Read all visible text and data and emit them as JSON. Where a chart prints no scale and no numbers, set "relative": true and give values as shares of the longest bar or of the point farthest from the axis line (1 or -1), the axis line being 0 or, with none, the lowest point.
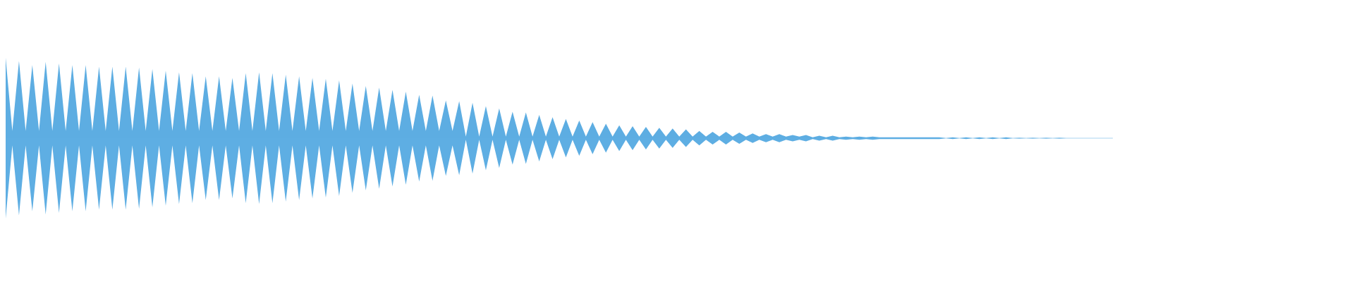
{
  "chart_data": {
    "type": "area",
    "relative": true,
    "ref_lines": [
      {
        "axis": "y",
        "value": 0,
        "color": "#a9d3ef"
      }
    ],
    "categories": [
      null,
      null,
      null,
      null,
      null,
      null,
      null,
      null,
      null,
      null,
      null,
      null,
      null,
      null,
      null,
      null,
      null,
      null,
      null,
      null,
      null,
      null,
      null,
      null,
      null,
      null,
      null,
      null,
      null,
      null,
      null,
      null,
      null,
      null,
      null,
      null,
      null,
      null,
      null,
      null,
      null,
      null,
      null,
      null,
      null,
      null,
      null,
      null,
      null,
      null,
      null,
      null,
      null,
      null,
      null,
      null,
      null,
      null,
      null,
      null,
      null,
      null,
      null,
      null,
      null,
      null,
      null,
      null,
      null,
      null,
      null,
      null,
      null,
      null,
      null,
      null,
      null,
      null,
      null,
      null,
      null,
      null,
      null,
      null,
      null,
      null,
      null,
      null,
      null,
      null,
      null,
      null,
      null,
      null,
      null,
      null,
      null,
      null,
      null,
      null,
      null,
      null,
      null,
      null,
      null,
      null,
      null,
      null,
      null,
      null,
      null,
      null,
      null,
      null,
      null,
      null,
      null,
      null,
      null,
      null,
      null,
      null,
      null,
      null,
      null,
      null,
      null,
      null,
      null,
      null,
      null,
      null,
      null,
      null,
      null,
      null,
      null,
      null,
      null,
      null,
      null,
      null,
      null,
      null,
      null,
      null,
      null,
      null,
      null,
      null,
      null,
      null,
      null,
      null,
      null,
      null,
      null,
      null,
      null,
      null,
      null,
      null,
      null,
      null,
      null,
      null,
      null
    ],
    "series": [
      {
        "color": "#5dade2",
        "values": [
          1,
          0.09,
          0.96,
          0.09,
          0.91,
          0.09,
          0.95,
          0.09,
          0.93,
          0.09,
          0.91,
          0.09,
          0.91,
          0.09,
          0.89,
          0.09,
          0.89,
          0.09,
          0.89,
          0.09,
          0.88,
          0.09,
          0.86,
          0.09,
          0.84,
          0.09,
          0.82,
          0.09,
          0.81,
          0.09,
          0.77,
          0.09,
          0.77,
          0.09,
          0.75,
          0.09,
          0.81,
          0.09,
          0.82,
          0.09,
          0.81,
          0.09,
          0.79,
          0.09,
          0.77,
          0.09,
          0.75,
          0.09,
          0.74,
          0.09,
          0.72,
          0.09,
          0.68,
          0.09,
          0.65,
          0.09,
          0.63,
          0.09,
          0.6,
          0.09,
          0.58,
          0.09,
          0.54,
          0.09,
          0.53,
          0.09,
          0.47,
          0.09,
          0.46,
          0.02,
          0.44,
          0.02,
          0.4,
          0.02,
          0.37,
          0.02,
          0.33,
          0.02,
          0.32,
          0.02,
          0.29,
          0.02,
          0.26,
          0.02,
          0.24,
          0.02,
          0.22,
          0.02,
          0.2,
          0.02,
          0.18,
          0.02,
          0.16,
          0.02,
          0.15,
          0.02,
          0.14,
          0.02,
          0.13,
          0.02,
          0.12,
          0.02,
          0.11,
          0.02,
          0.09,
          0.02,
          0.08,
          0.02,
          0.08,
          0.02,
          0.07,
          0.02,
          0.06,
          0.02,
          0.05,
          0.02,
          0.05,
          0.02,
          0.04,
          0.02,
          0.04,
          0.01,
          0.03,
          0.01,
          0.03,
          0.01,
          0.02,
          0.01,
          0.02,
          0.01,
          0.02,
          0.01,
          0.01,
          0.01,
          0.01,
          0.01,
          0.01,
          0.01,
          0.01,
          0.01,
          0.01,
          0,
          0.01,
          0,
          0.01,
          0,
          0.01,
          0,
          0.01,
          0,
          0.01,
          0,
          0.005,
          0,
          0.005,
          0,
          0.005,
          0,
          0.005,
          0,
          0,
          0,
          0,
          0,
          0,
          0,
          0
        ]
      },
      {
        "color": "#5eaee3",
        "values": [
          -1,
          -0.09,
          -0.96,
          -0.09,
          -0.91,
          -0.09,
          -0.95,
          -0.09,
          -0.93,
          -0.09,
          -0.91,
          -0.09,
          -0.91,
          -0.09,
          -0.89,
          -0.09,
          -0.89,
          -0.09,
          -0.89,
          -0.09,
          -0.88,
          -0.09,
          -0.86,
          -0.09,
          -0.84,
          -0.09,
          -0.82,
          -0.09,
          -0.81,
          -0.09,
          -0.77,
          -0.09,
          -0.77,
          -0.09,
          -0.75,
          -0.09,
          -0.81,
          -0.09,
          -0.82,
          -0.09,
          -0.81,
          -0.09,
          -0.79,
          -0.09,
          -0.77,
          -0.09,
          -0.75,
          -0.09,
          -0.74,
          -0.09,
          -0.72,
          -0.09,
          -0.68,
          -0.09,
          -0.65,
          -0.09,
          -0.63,
          -0.09,
          -0.6,
          -0.09,
          -0.58,
          -0.09,
          -0.54,
          -0.09,
          -0.53,
          -0.09,
          -0.47,
          -0.09,
          -0.46,
          -0.02,
          -0.44,
          -0.02,
          -0.4,
          -0.02,
          -0.37,
          -0.02,
          -0.33,
          -0.02,
          -0.32,
          -0.02,
          -0.29,
          -0.02,
          -0.26,
          -0.02,
          -0.24,
          -0.02,
          -0.22,
          -0.02,
          -0.2,
          -0.02,
          -0.18,
          -0.02,
          -0.16,
          -0.02,
          -0.15,
          -0.02,
          -0.14,
          -0.02,
          -0.13,
          -0.02,
          -0.12,
          -0.02,
          -0.11,
          -0.02,
          -0.09,
          -0.02,
          -0.08,
          -0.02,
          -0.08,
          -0.02,
          -0.07,
          -0.02,
          -0.06,
          -0.02,
          -0.05,
          -0.02,
          -0.05,
          -0.02,
          -0.04,
          -0.02,
          -0.04,
          -0.01,
          -0.03,
          -0.01,
          -0.03,
          -0.01,
          -0.02,
          -0.01,
          -0.02,
          -0.01,
          -0.02,
          -0.01,
          -0.01,
          -0.01,
          -0.01,
          -0.01,
          -0.01,
          -0.01,
          -0.01,
          -0.01,
          -0.01,
          0,
          -0.01,
          0,
          -0.01,
          0,
          -0.01,
          0,
          -0.01,
          0,
          -0.01,
          0,
          -0.005,
          0,
          -0.005,
          0,
          -0.005,
          0,
          -0.005,
          0,
          0,
          0,
          0,
          0,
          0,
          0,
          0
        ]
      }
    ]
  }
}
